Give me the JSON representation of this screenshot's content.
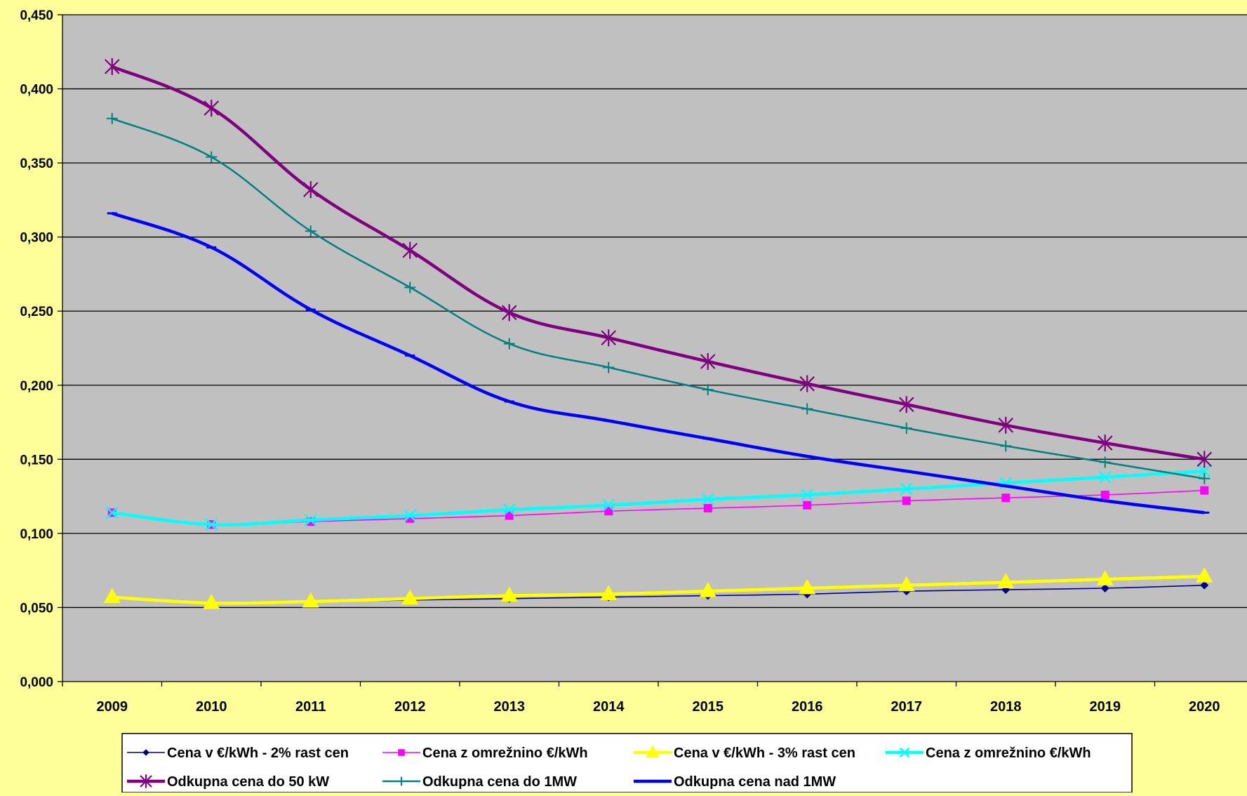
{
  "chart_data": {
    "type": "line",
    "title": "",
    "xlabel": "",
    "ylabel": "",
    "categories": [
      "2009",
      "2010",
      "2011",
      "2012",
      "2013",
      "2014",
      "2015",
      "2016",
      "2017",
      "2018",
      "2019",
      "2020"
    ],
    "ylim": [
      0,
      0.45
    ],
    "yticks": [
      0,
      0.05,
      0.1,
      0.15,
      0.2,
      0.25,
      0.3,
      0.35,
      0.4,
      0.45
    ],
    "ytick_labels": [
      "0,000",
      "0,050",
      "0,100",
      "0,150",
      "0,200",
      "0,250",
      "0,300",
      "0,350",
      "0,400",
      "0,450"
    ],
    "grid": "horizontal",
    "legend_position": "bottom",
    "plot_background": "#C0C0C0",
    "page_background": "#FFFF99",
    "series": [
      {
        "name": "Cena v €/kWh - 2% rast cen",
        "color": "#000080",
        "marker": "diamond",
        "values": [
          0.057,
          0.053,
          0.054,
          0.055,
          0.056,
          0.057,
          0.058,
          0.059,
          0.061,
          0.062,
          0.063,
          0.065
        ]
      },
      {
        "name": "Cena z omrežnino €/kWh",
        "color": "#FF00FF",
        "marker": "square",
        "values": [
          0.114,
          0.106,
          0.108,
          0.11,
          0.112,
          0.115,
          0.117,
          0.119,
          0.122,
          0.124,
          0.126,
          0.129
        ]
      },
      {
        "name": "Cena v €/kWh - 3% rast cen",
        "color": "#FFFF00",
        "marker": "triangle",
        "values": [
          0.057,
          0.053,
          0.054,
          0.056,
          0.058,
          0.059,
          0.061,
          0.063,
          0.065,
          0.067,
          0.069,
          0.071
        ]
      },
      {
        "name": "Cena z omrežnino €/kWh",
        "color": "#00FFFF",
        "marker": "x",
        "values": [
          0.114,
          0.106,
          0.109,
          0.112,
          0.116,
          0.119,
          0.123,
          0.126,
          0.13,
          0.134,
          0.138,
          0.142
        ]
      },
      {
        "name": "Odkupna cena do 50 kW",
        "color": "#800080",
        "marker": "star",
        "values": [
          0.415,
          0.387,
          0.332,
          0.291,
          0.249,
          0.232,
          0.216,
          0.201,
          0.187,
          0.173,
          0.161,
          0.15
        ]
      },
      {
        "name": "Odkupna cena do 1MW",
        "color": "#008080",
        "marker": "plus",
        "values": [
          0.38,
          0.354,
          0.304,
          0.266,
          0.228,
          0.212,
          0.197,
          0.184,
          0.171,
          0.159,
          0.148,
          0.137
        ]
      },
      {
        "name": "Odkupna cena nad 1MW",
        "color": "#0000FF",
        "marker": "dash",
        "values": [
          0.316,
          0.293,
          0.251,
          0.22,
          0.189,
          0.176,
          0.164,
          0.152,
          0.142,
          0.132,
          0.122,
          0.114
        ]
      }
    ]
  }
}
